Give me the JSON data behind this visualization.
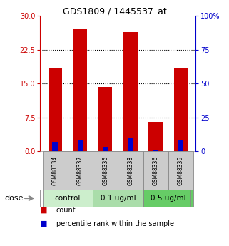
{
  "title": "GDS1809 / 1445537_at",
  "samples": [
    "GSM88334",
    "GSM88337",
    "GSM88335",
    "GSM88338",
    "GSM88336",
    "GSM88339"
  ],
  "red_values": [
    18.5,
    27.2,
    14.2,
    26.5,
    6.5,
    18.5
  ],
  "blue_values": [
    7.0,
    8.0,
    3.5,
    9.5,
    0.7,
    8.0
  ],
  "groups": [
    {
      "label": "control",
      "indices": [
        0,
        1
      ],
      "color": "#cceecc"
    },
    {
      "label": "0.1 ug/ml",
      "indices": [
        2,
        3
      ],
      "color": "#aaddaa"
    },
    {
      "label": "0.5 ug/ml",
      "indices": [
        4,
        5
      ],
      "color": "#66cc66"
    }
  ],
  "ylim_left": [
    0,
    30
  ],
  "ylim_right": [
    0,
    100
  ],
  "yticks_left": [
    0,
    7.5,
    15,
    22.5,
    30
  ],
  "yticks_right": [
    0,
    25,
    50,
    75,
    100
  ],
  "ytick_labels_right": [
    "0",
    "25",
    "50",
    "75",
    "100%"
  ],
  "left_axis_color": "#cc0000",
  "right_axis_color": "#0000cc",
  "red_color": "#cc0000",
  "blue_color": "#0000cc",
  "legend_red_label": "count",
  "legend_blue_label": "percentile rank within the sample",
  "dose_label": "dose",
  "bg_color": "#ffffff",
  "plot_bg": "#ffffff",
  "sample_box_color": "#cccccc",
  "grid_dotted_color": "#000000",
  "bar_width": 0.55,
  "blue_bar_width": 0.22
}
